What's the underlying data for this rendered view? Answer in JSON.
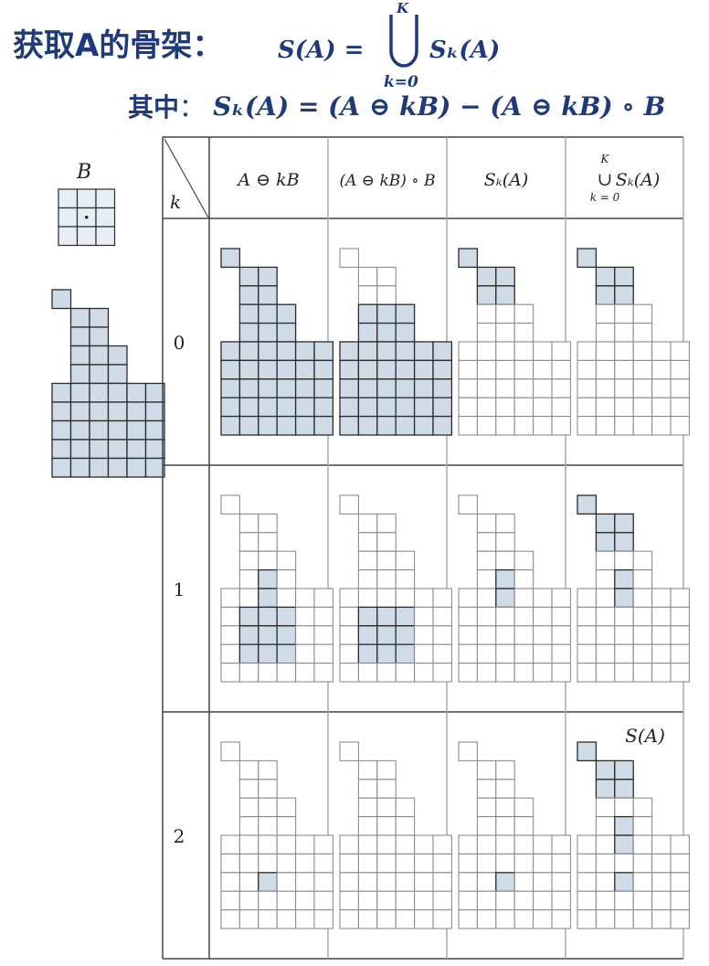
{
  "title": {
    "chinese": "获取A的骨架：",
    "formula_lhs": "S(A) =",
    "formula_upper": "K",
    "formula_lower": "k=0",
    "formula_rhs": "Sₖ(A)"
  },
  "subtitle": {
    "chinese": "其中",
    "colon": "：",
    "formula": "Sₖ(A) = (A ⊖ kB) − (A ⊖ kB) ∘ B"
  },
  "structuring_element": {
    "label": "B"
  },
  "table": {
    "corner_label": "k",
    "headers": [
      "A ⊖ kB",
      "(A ⊖ kB) ∘ B",
      "Sₖ(A)",
      "Sₖ(A)"
    ],
    "union_header": {
      "upper": "K",
      "symbol": "∪",
      "lower": "k = 0"
    },
    "row_labels": [
      "0",
      "1",
      "2"
    ],
    "final_label": "S(A)"
  },
  "colors": {
    "title_blue": "#1f3a7a",
    "fill_blue": "#cfdce8",
    "light_fill": "#e6edf5",
    "grid_dark": "#2b2b2b",
    "grid_light": "#9a9a9a"
  },
  "shape_A": {
    "rows": [
      "X.....",
      ".XX...",
      ".XX...",
      ".XXX..",
      ".XXX..",
      "XXXXXX",
      "XXXXXX",
      "XXXXXX",
      "XXXXXX",
      "XXXXXX"
    ]
  },
  "cells": {
    "r0": {
      "c1": [
        "X.....",
        ".XX...",
        ".XX...",
        ".XXX..",
        ".XXX..",
        "XXXXXX",
        "XXXXXX",
        "XXXXXX",
        "XXXXXX",
        "XXXXXX"
      ],
      "c2": [
        "......",
        "......",
        "......",
        ".XXX..",
        ".XXX..",
        "XXXXXX",
        "XXXXXX",
        "XXXXXX",
        "XXXXXX",
        "XXXXXX"
      ],
      "c3": [
        "X.....",
        ".XX...",
        ".XX...",
        "......",
        "......",
        "......",
        "......",
        "......",
        "......",
        "......"
      ],
      "c4": [
        "X.....",
        ".XX...",
        ".XX...",
        "......",
        "......",
        "......",
        "......",
        "......",
        "......",
        "......"
      ]
    },
    "r1": {
      "c1": [
        "......",
        "......",
        "......",
        "......",
        "..X...",
        "..X...",
        ".XXX..",
        ".XXX..",
        ".XXX..",
        "......"
      ],
      "c2": [
        "......",
        "......",
        "......",
        "......",
        "......",
        "......",
        ".XXX..",
        ".XXX..",
        ".XXX..",
        "......"
      ],
      "c3": [
        "......",
        "......",
        "......",
        "......",
        "..X...",
        "..X...",
        "......",
        "......",
        "......",
        "......"
      ],
      "c4": [
        "X.....",
        ".XX...",
        ".XX...",
        "......",
        "..X...",
        "..X...",
        "......",
        "......",
        "......",
        "......"
      ]
    },
    "r2": {
      "c1": [
        "......",
        "......",
        "......",
        "......",
        "......",
        "......",
        "......",
        "..X...",
        "......",
        "......"
      ],
      "c2": [
        "......",
        "......",
        "......",
        "......",
        "......",
        "......",
        "......",
        "......",
        "......",
        "......"
      ],
      "c3": [
        "......",
        "......",
        "......",
        "......",
        "......",
        "......",
        "......",
        "..X...",
        "......",
        "......"
      ],
      "c4": [
        "X.....",
        ".XX...",
        ".XX...",
        "......",
        "..X...",
        "..X...",
        "......",
        "..X...",
        "......",
        "......"
      ]
    }
  }
}
